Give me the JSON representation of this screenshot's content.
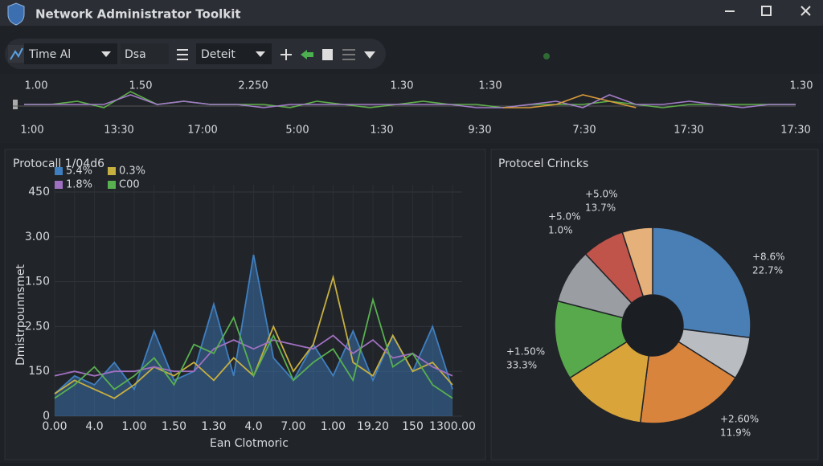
{
  "window": {
    "title": "Network Administrator Toolkit"
  },
  "toolbar": {
    "time_dropdown": "Time Al",
    "field": "Dsa",
    "mode_dropdown": "Deteit"
  },
  "timeline": {
    "top_labels": [
      "1.00",
      "1.50",
      "2.250",
      "1.30",
      "1:30",
      "1.30"
    ],
    "bottom_labels": [
      "1:00",
      "13:30",
      "17:00",
      "5:00",
      "1:30",
      "9:30",
      "7:30",
      "17:30",
      "17:30"
    ],
    "series": [
      {
        "color": "#5fb04a",
        "values": [
          5,
          5,
          6,
          4,
          9,
          5,
          6,
          5,
          5,
          5,
          4,
          6,
          5,
          4,
          5,
          6,
          5,
          5,
          4,
          5,
          5,
          5,
          6,
          5,
          4,
          5,
          5,
          5,
          5,
          5
        ]
      },
      {
        "color": "#a27cc8",
        "values": [
          5,
          5,
          5,
          5,
          8,
          5,
          6,
          5,
          5,
          4,
          5,
          5,
          5,
          5,
          5,
          5,
          5,
          4,
          4,
          5,
          6,
          4,
          8,
          5,
          5,
          6,
          5,
          4,
          5,
          5
        ]
      },
      {
        "color": "#d99a3a",
        "values": [
          null,
          null,
          null,
          null,
          null,
          null,
          null,
          null,
          null,
          null,
          null,
          null,
          null,
          null,
          null,
          null,
          null,
          null,
          4,
          4,
          5,
          8,
          6,
          4,
          null,
          null,
          null,
          null,
          null,
          null
        ]
      }
    ]
  },
  "chart_data": [
    {
      "type": "line",
      "title": "Protocall 1/04d6",
      "xlabel": "Ean Clotmoric",
      "ylabel": "Dmistrpounnsmet",
      "categories": [
        "0.00",
        null,
        "4.0",
        null,
        "1.00",
        null,
        "1.50",
        null,
        "1.30",
        null,
        "4.0",
        null,
        "7.00",
        null,
        "1.00",
        null,
        "19.20",
        null,
        "150",
        null,
        "1300.00"
      ],
      "ylim": [
        0,
        5
      ],
      "yticks": [
        0,
        {
          "value": 1,
          "label": "150"
        },
        {
          "value": 2,
          "label": "2.50"
        },
        {
          "value": 3,
          "label": "1.50"
        },
        {
          "value": 4,
          "label": "3.00"
        },
        {
          "value": 5,
          "label": "450"
        }
      ],
      "grid": true,
      "series": [
        {
          "name": "5.4%",
          "color": "#3f7fc0",
          "values": [
            0.5,
            0.9,
            0.7,
            1.2,
            0.6,
            1.9,
            0.8,
            1.0,
            2.5,
            0.9,
            3.6,
            1.3,
            0.8,
            1.6,
            0.9,
            1.9,
            0.8,
            1.8,
            1.0,
            2.0,
            0.6
          ]
        },
        {
          "name": "0.3%",
          "color": "#c8b040",
          "values": [
            0.5,
            0.8,
            0.6,
            0.4,
            0.7,
            1.1,
            0.9,
            1.2,
            0.8,
            1.3,
            0.9,
            2.0,
            1.0,
            1.6,
            3.1,
            1.2,
            0.9,
            1.8,
            1.0,
            1.2,
            0.7
          ]
        },
        {
          "name": "1.8%",
          "color": "#a070c0",
          "values": [
            0.9,
            1.0,
            0.9,
            1.0,
            1.0,
            1.1,
            1.0,
            1.0,
            1.5,
            1.7,
            1.5,
            1.7,
            1.6,
            1.5,
            1.8,
            1.4,
            1.7,
            1.3,
            1.4,
            1.1,
            0.9
          ]
        },
        {
          "name": "C00",
          "color": "#58b050",
          "values": [
            0.4,
            0.7,
            1.1,
            0.6,
            0.9,
            1.3,
            0.7,
            1.6,
            1.4,
            2.2,
            0.9,
            1.8,
            0.8,
            1.2,
            1.5,
            0.8,
            2.6,
            1.1,
            1.4,
            0.7,
            0.4
          ]
        }
      ]
    },
    {
      "type": "pie",
      "title": "Protocel Crincks",
      "values": [
        27,
        7,
        18,
        14,
        13,
        9,
        7,
        5
      ],
      "colors": [
        "#4a7fb5",
        "#b9bcc0",
        "#d9843c",
        "#d9a53a",
        "#58a84c",
        "#9a9ea3",
        "#c0544a",
        "#e6b07a"
      ],
      "annotations": [
        [
          "+8.6%",
          "22.7%"
        ],
        [
          "+2.60%",
          "11.9%"
        ],
        [
          "+1.50%",
          "33.3%"
        ],
        [
          "+5.0%",
          "1.0%"
        ],
        [
          "+5.0%",
          "13.7%"
        ]
      ]
    }
  ]
}
